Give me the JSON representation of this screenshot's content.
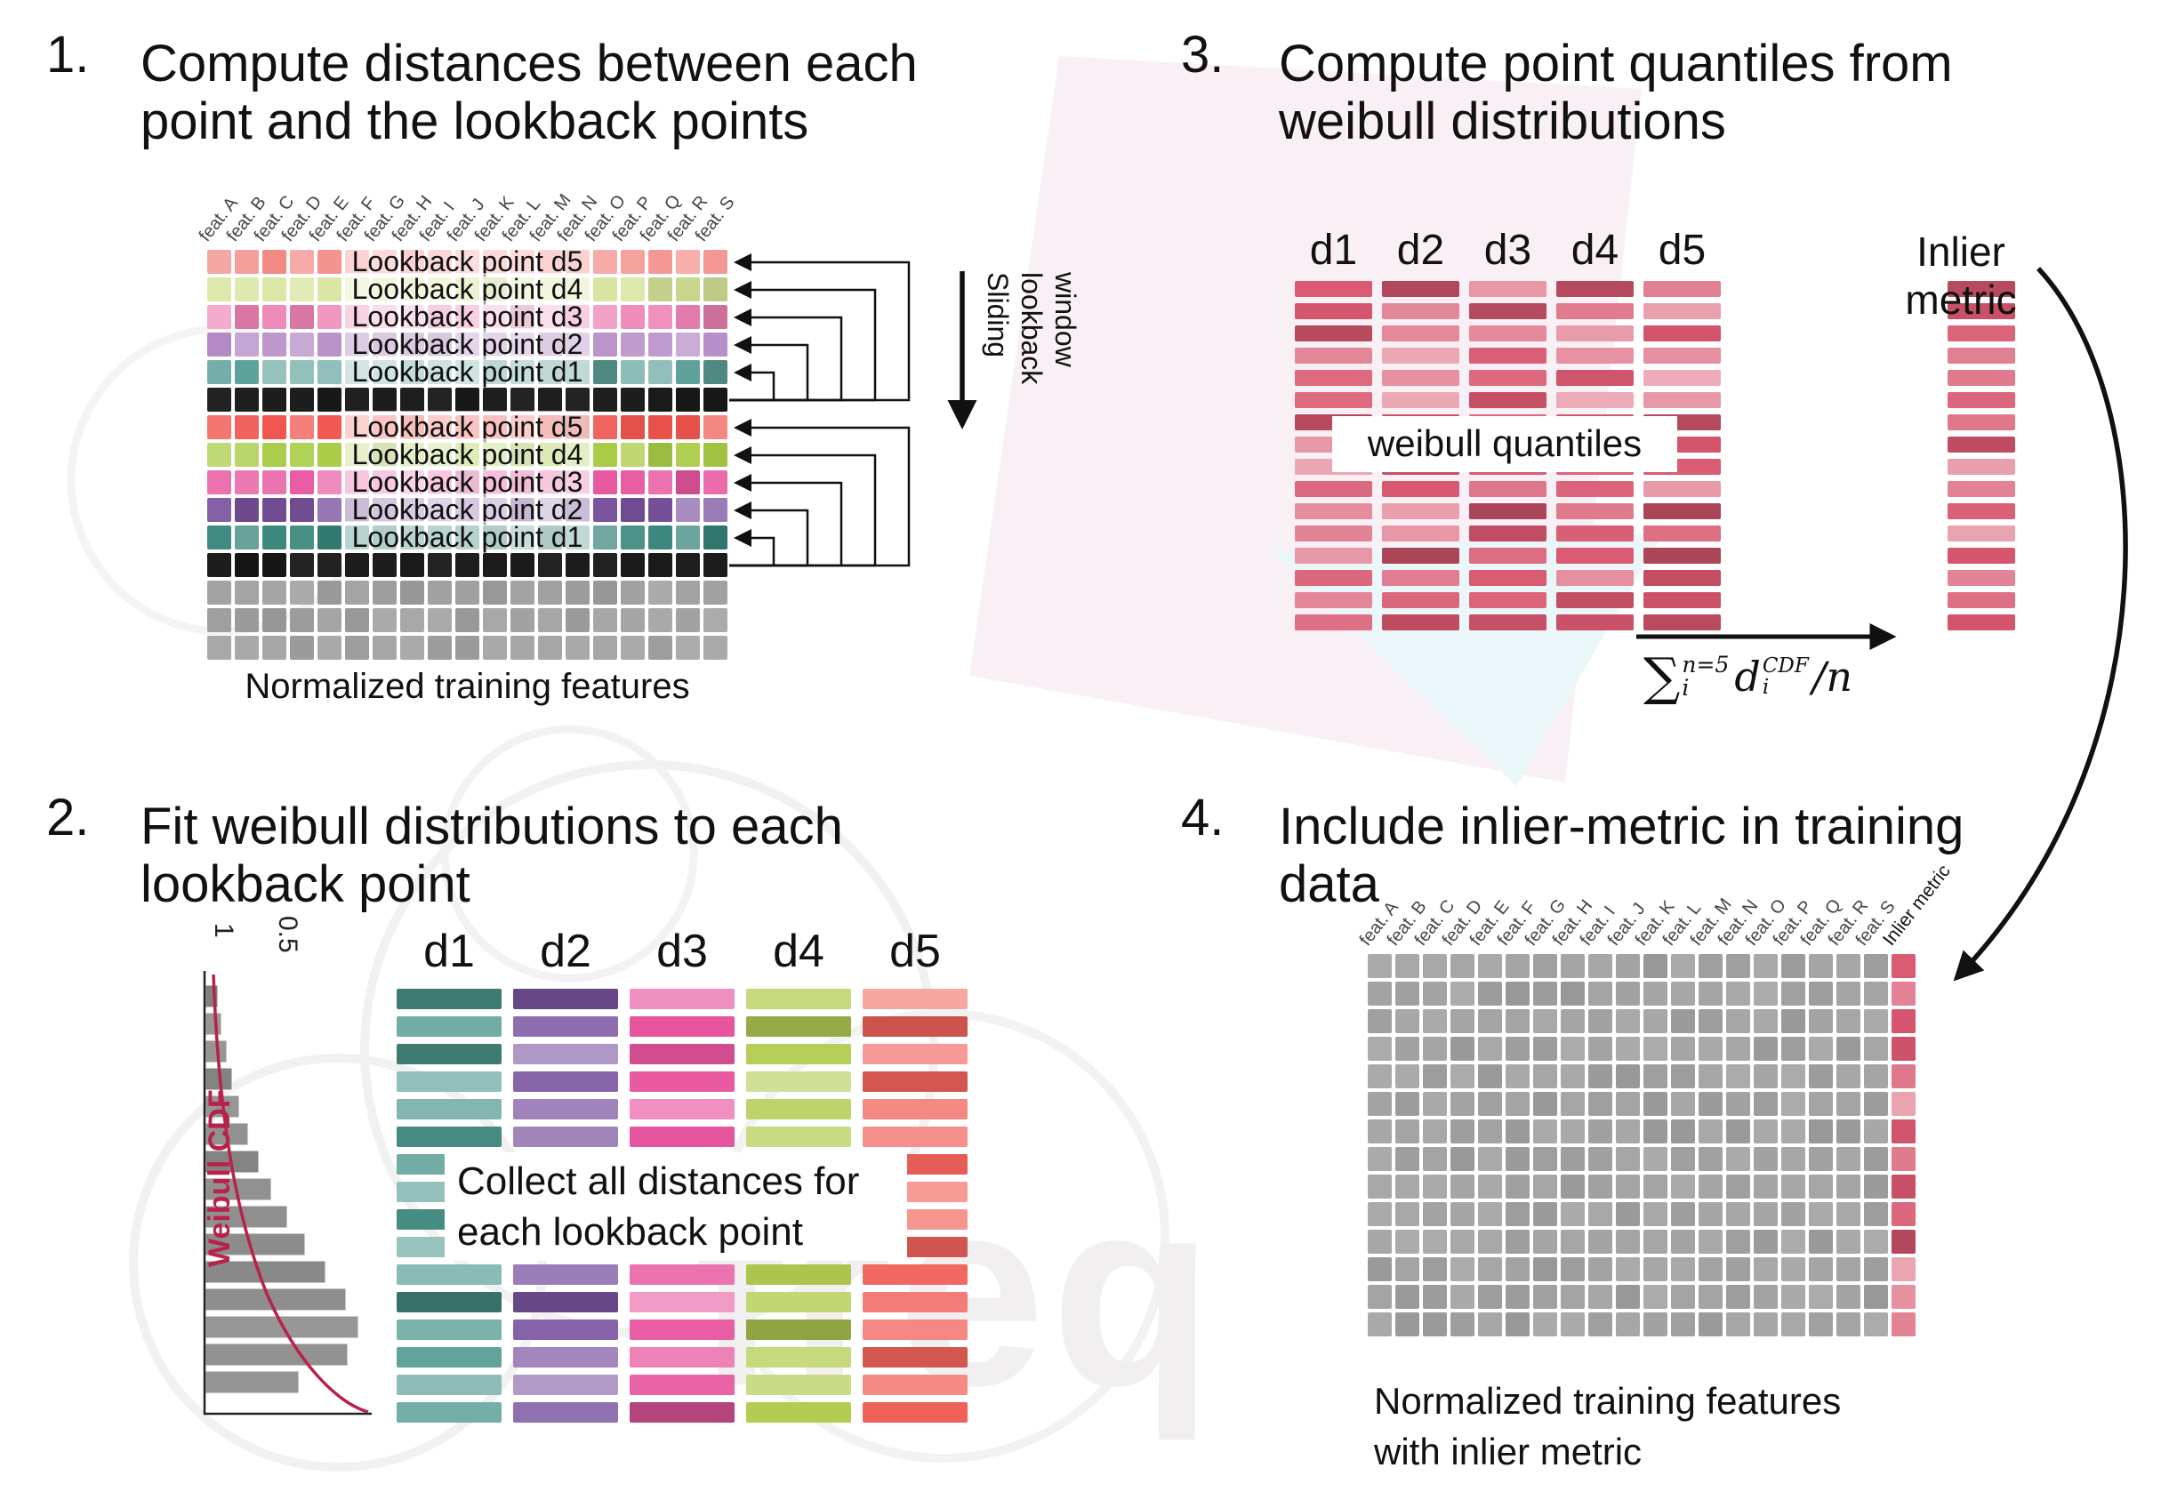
{
  "watermark": {
    "text": "freq"
  },
  "step1": {
    "number": "1.",
    "title_lines": [
      "Compute distances between each",
      "point and the lookback points"
    ],
    "caption": "Normalized training features",
    "sliding_window_lines": [
      "Sliding",
      "lookback",
      "window"
    ],
    "feature_headers": [
      "feat. A",
      "feat. B",
      "feat. C",
      "feat. D",
      "feat. E",
      "feat. F",
      "feat. G",
      "feat. H",
      "feat. I",
      "feat. J",
      "feat. K",
      "feat. L",
      "feat. M",
      "feat. N",
      "feat. O",
      "feat. P",
      "feat. Q",
      "feat. R",
      "feat. S"
    ],
    "rows": [
      {
        "label": "Lookback point d5",
        "color": "#f2837f",
        "vl": 0.38,
        "vd": 0.1
      },
      {
        "label": "Lookback point d4",
        "color": "#d4e296",
        "vl": 0.3,
        "vd": 0.12
      },
      {
        "label": "Lookback point d3",
        "color": "#ee82b4",
        "vl": 0.35,
        "vd": 0.15
      },
      {
        "label": "Lookback point d2",
        "color": "#b084c3",
        "vl": 0.35,
        "vd": 0.15
      },
      {
        "label": "Lookback point d1",
        "color": "#5fa29b",
        "vl": 0.35,
        "vd": 0.18
      },
      {
        "label": null,
        "color": "#161616",
        "vl": 0.06,
        "vd": 0.0
      },
      {
        "label": "Lookback point d5",
        "color": "#f1544e",
        "vl": 0.35,
        "vd": 0.12
      },
      {
        "label": "Lookback point d4",
        "color": "#a9cb45",
        "vl": 0.35,
        "vd": 0.12
      },
      {
        "label": "Lookback point d3",
        "color": "#e7559e",
        "vl": 0.35,
        "vd": 0.12
      },
      {
        "label": "Lookback point d2",
        "color": "#7b54a0",
        "vl": 0.35,
        "vd": 0.15
      },
      {
        "label": "Lookback point d1",
        "color": "#36847a",
        "vl": 0.35,
        "vd": 0.15
      },
      {
        "label": null,
        "color": "#161616",
        "vl": 0.06,
        "vd": 0.0
      },
      {
        "label": null,
        "color": "#a2a2a2",
        "vl": 0.1,
        "vd": 0.08
      },
      {
        "label": null,
        "color": "#a2a2a2",
        "vl": 0.1,
        "vd": 0.08
      },
      {
        "label": null,
        "color": "#a2a2a2",
        "vl": 0.1,
        "vd": 0.08
      }
    ]
  },
  "step2": {
    "number": "2.",
    "title_lines": [
      "Fit weibull distributions to each",
      "lookback point"
    ],
    "weibull_plot": {
      "ylabel": "Weibull CDF",
      "tick_labels": [
        "1",
        "0.5"
      ],
      "curve_color": "#b8224a",
      "bar_color": "#8e8e8e",
      "bar_lengths": [
        14,
        18,
        24,
        30,
        38,
        48,
        60,
        74,
        92,
        112,
        135,
        158,
        172,
        160,
        105
      ]
    },
    "overlay_lines": [
      "Collect all distances for",
      "each lookback point"
    ],
    "columns": [
      {
        "label": "d1",
        "color": "#4a968c",
        "vl": 0.45,
        "vd": 0.25
      },
      {
        "label": "d2",
        "color": "#7b54a0",
        "vl": 0.45,
        "vd": 0.22
      },
      {
        "label": "d3",
        "color": "#e7559e",
        "vl": 0.45,
        "vd": 0.22
      },
      {
        "label": "d4",
        "color": "#b3cc52",
        "vl": 0.45,
        "vd": 0.2
      },
      {
        "label": "d5",
        "color": "#f2625b",
        "vl": 0.45,
        "vd": 0.18
      }
    ],
    "bars_per_column": 16
  },
  "step3": {
    "number": "3.",
    "title_lines": [
      "Compute point quantiles from",
      "weibull distributions"
    ],
    "column_labels": [
      "d1",
      "d2",
      "d3",
      "d4",
      "d5"
    ],
    "overlay": "weibull quantiles",
    "inlier_label": "Inlier metric",
    "quantile_color": "#d8576f",
    "quantile_vl": 0.52,
    "quantile_vd": 0.22,
    "bars_per_column": 16,
    "formula": {
      "sum": "∑",
      "sum_sup": "n=5",
      "sum_sub": "i",
      "var": "d",
      "var_sup": "CDF",
      "var_sub": "i",
      "tail": "/n"
    }
  },
  "step4": {
    "number": "4.",
    "title_lines": [
      "Include inlier-metric in training",
      "data"
    ],
    "caption_lines": [
      "Normalized training features",
      "with inlier metric"
    ],
    "feature_headers": [
      "feat. A",
      "feat. B",
      "feat. C",
      "feat. D",
      "feat. E",
      "feat. F",
      "feat. G",
      "feat. H",
      "feat. I",
      "feat. J",
      "feat. K",
      "feat. L",
      "feat. M",
      "feat. N",
      "feat. O",
      "feat. P",
      "feat. Q",
      "feat. R",
      "feat. S"
    ],
    "inlier_header": "Inlier metric",
    "grid": {
      "cols": 19,
      "rows": 14,
      "cell_color": "#a3a3a3",
      "cell_vl": 0.09,
      "cell_vd": 0.07,
      "inlier_color": "#d8576f",
      "inlier_vl": 0.5,
      "inlier_vd": 0.2
    }
  }
}
